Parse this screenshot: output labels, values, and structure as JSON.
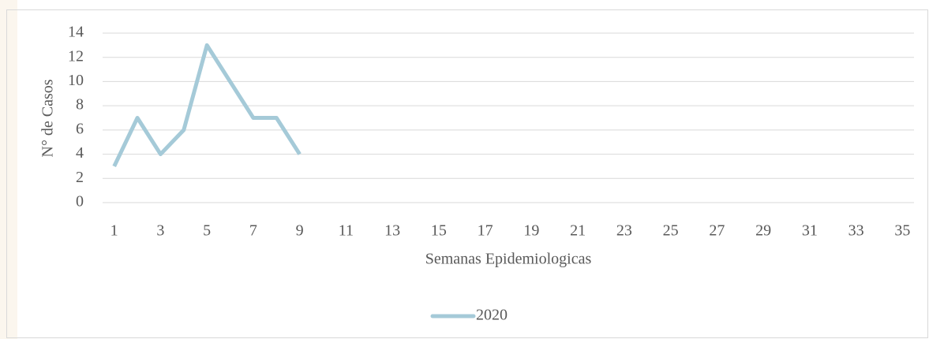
{
  "chart_data": {
    "type": "line",
    "y_label": "N° de Casos",
    "x_label": "Semanas Epidemiologicas",
    "categories": [
      "1",
      null,
      "3",
      null,
      "5",
      null,
      "7",
      null,
      "9",
      null,
      "11",
      null,
      "13",
      null,
      "15",
      null,
      "17",
      null,
      "19",
      null,
      "21",
      null,
      "23",
      null,
      "25",
      null,
      "27",
      null,
      "29",
      null,
      "31",
      null,
      "33",
      null,
      "35"
    ],
    "series": [
      {
        "name": "2020",
        "color": "#a5cad8",
        "values": [
          3,
          7,
          4,
          6,
          13,
          10,
          7,
          7,
          4,
          null,
          null,
          null,
          null,
          null,
          null,
          null,
          null,
          null,
          null,
          null,
          null,
          null,
          null,
          null,
          null,
          null,
          null,
          null,
          null,
          null,
          null,
          null,
          null,
          null,
          null
        ]
      }
    ],
    "ylim": [
      0,
      14
    ],
    "yticks": [
      0,
      2,
      4,
      6,
      8,
      10,
      12,
      14
    ],
    "grid": true,
    "legend": "bottom"
  }
}
